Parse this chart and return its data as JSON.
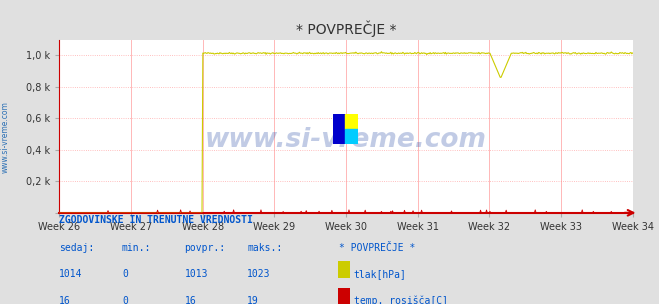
{
  "title": "* POVPREČJE *",
  "bg_color": "#e0e0e0",
  "plot_bg_color": "#ffffff",
  "weeks": [
    "Week 26",
    "Week 27",
    "Week 28",
    "Week 29",
    "Week 30",
    "Week 31",
    "Week 32",
    "Week 33",
    "Week 34"
  ],
  "week_numbers": [
    26,
    27,
    28,
    29,
    30,
    31,
    32,
    33,
    34
  ],
  "ylim": [
    0,
    1100
  ],
  "yticks": [
    0,
    200,
    400,
    600,
    800,
    1000
  ],
  "ytick_labels": [
    "",
    "0,2 k",
    "0,4 k",
    "0,6 k",
    "0,8 k",
    "1,0 k"
  ],
  "axis_color": "#cc0000",
  "title_color": "#333333",
  "watermark": "www.si-vreme.com",
  "watermark_color": "#3355aa",
  "watermark_alpha": 0.3,
  "tlak_color": "#cccc00",
  "rosisce_color": "#cc0000",
  "n_points": 672,
  "table_header": "ZGODOVINSKE IN TRENUTNE VREDNOSTI",
  "col_headers": [
    "sedaj:",
    "min.:",
    "povpr.:",
    "maks.:"
  ],
  "row1_vals": [
    "1014",
    "0",
    "1013",
    "1023"
  ],
  "row2_vals": [
    "16",
    "0",
    "16",
    "19"
  ],
  "legend_title": "* POVPREČJE *",
  "legend1_label": "tlak[hPa]",
  "legend2_label": "temp. rosišča[C]",
  "table_color": "#0055cc",
  "left_label": "www.si-vreme.com",
  "left_label_color": "#0055aa"
}
